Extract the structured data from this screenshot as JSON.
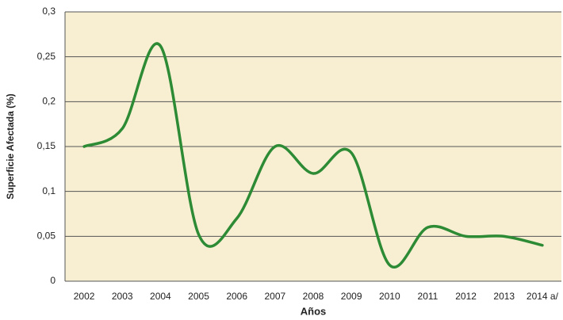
{
  "chart_data": {
    "type": "line",
    "x_label": "Años",
    "y_label": "Superficie Afectada (%)",
    "categories": [
      "2002",
      "2003",
      "2004",
      "2005",
      "2006",
      "2007",
      "2008",
      "2009",
      "2010",
      "2011",
      "2012",
      "2013",
      "2014 a/"
    ],
    "series": [
      {
        "name": "Superficie Afectada",
        "color": "#2e8b35",
        "values": [
          0.15,
          0.17,
          0.262,
          0.052,
          0.07,
          0.15,
          0.12,
          0.143,
          0.018,
          0.06,
          0.05,
          0.05,
          0.04
        ]
      }
    ],
    "ylim": [
      0,
      0.3
    ],
    "yticks": [
      0,
      {
        "value": 0.05,
        "label": "0,05"
      },
      {
        "value": 0.1,
        "label": "0,1"
      },
      {
        "value": 0.15,
        "label": "0,15"
      },
      {
        "value": 0.2,
        "label": "0,2"
      },
      {
        "value": 0.25,
        "label": "0,25"
      },
      {
        "value": 0.3,
        "label": "0,3"
      }
    ],
    "grid": true,
    "background": "#f8efd2"
  }
}
